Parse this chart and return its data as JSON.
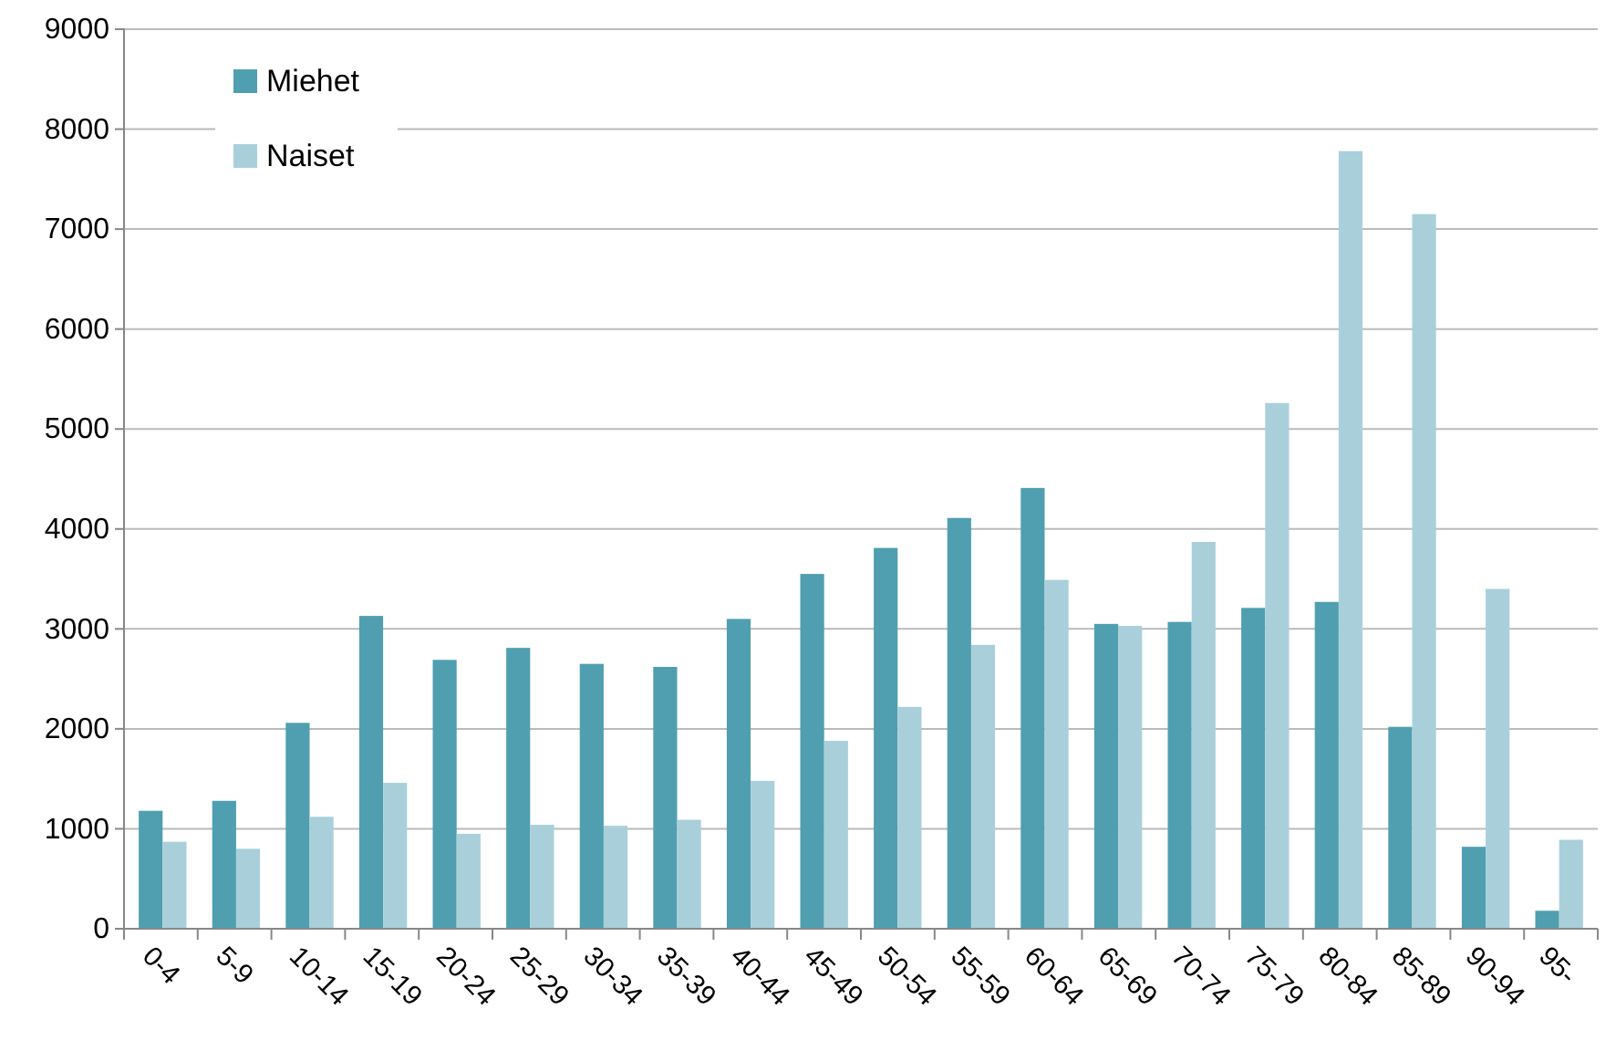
{
  "chart_data": {
    "type": "bar",
    "categories": [
      "0-4",
      "5-9",
      "10-14",
      "15-19",
      "20-24",
      "25-29",
      "30-34",
      "35-39",
      "40-44",
      "45-49",
      "50-54",
      "55-59",
      "60-64",
      "65-69",
      "70-74",
      "75-79",
      "80-84",
      "85-89",
      "90-94",
      "95-"
    ],
    "series": [
      {
        "name": "Miehet",
        "color": "#4f9fb0",
        "values": [
          1180,
          1280,
          2060,
          3130,
          2690,
          2810,
          2650,
          2620,
          3100,
          3550,
          3810,
          4110,
          4410,
          3050,
          3070,
          3210,
          3270,
          2020,
          820,
          180
        ]
      },
      {
        "name": "Naiset",
        "color": "#a9d0da",
        "values": [
          870,
          800,
          1120,
          1460,
          950,
          1040,
          1030,
          1090,
          1480,
          1880,
          2220,
          2840,
          3490,
          3030,
          3870,
          5260,
          7780,
          7150,
          3400,
          890
        ]
      }
    ],
    "ylim": [
      0,
      9000
    ],
    "yticks": [
      0,
      1000,
      2000,
      3000,
      4000,
      5000,
      6000,
      7000,
      8000,
      9000
    ],
    "grid": "y",
    "legend": "top left"
  }
}
